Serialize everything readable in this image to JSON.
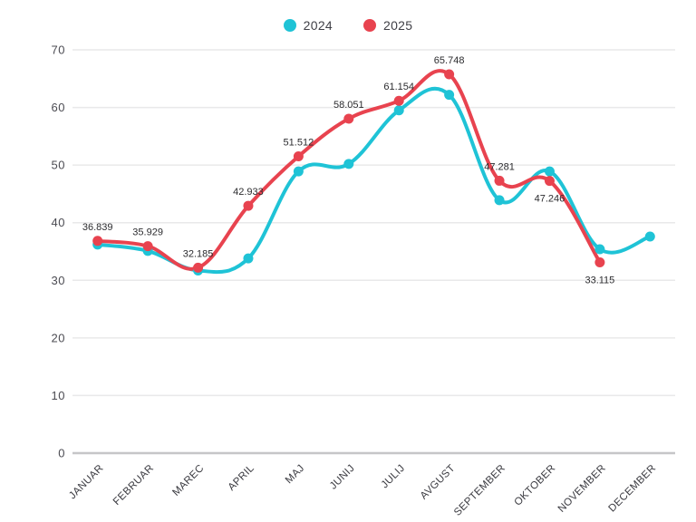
{
  "legend": {
    "items": [
      {
        "label": "2024",
        "color": "#1fc3d6"
      },
      {
        "label": "2025",
        "color": "#e8434f"
      }
    ]
  },
  "chart_data": {
    "type": "line",
    "categories": [
      "JANUAR",
      "FEBRUAR",
      "MAREC",
      "APRIL",
      "MAJ",
      "JUNIJ",
      "JULIJ",
      "AVGUST",
      "SEPTEMBER",
      "OKTOBER",
      "NOVEMBER",
      "DECEMBER"
    ],
    "series": [
      {
        "name": "2024",
        "color": "#1fc3d6",
        "values": [
          36.2,
          35.1,
          31.7,
          33.8,
          48.9,
          50.2,
          59.5,
          62.2,
          43.9,
          48.9,
          35.4,
          37.6
        ],
        "point_labels": []
      },
      {
        "name": "2025",
        "color": "#e8434f",
        "values": [
          36.839,
          35.929,
          32.185,
          42.933,
          51.512,
          58.051,
          61.154,
          65.748,
          47.281,
          47.246,
          33.115
        ],
        "point_labels": [
          {
            "text": "36.839",
            "pos": "above"
          },
          {
            "text": "35.929",
            "pos": "above"
          },
          {
            "text": "32.185",
            "pos": "above"
          },
          {
            "text": "42.933",
            "pos": "above"
          },
          {
            "text": "51.512",
            "pos": "above"
          },
          {
            "text": "58.051",
            "pos": "above"
          },
          {
            "text": "61.154",
            "pos": "above"
          },
          {
            "text": "65.748",
            "pos": "above"
          },
          {
            "text": "47.281",
            "pos": "above"
          },
          {
            "text": "47.246",
            "pos": "below"
          },
          {
            "text": "33.115",
            "pos": "below"
          }
        ]
      }
    ],
    "title": "",
    "xlabel": "",
    "ylabel": "",
    "ylim": [
      0,
      70
    ],
    "yticks": [
      0,
      10,
      20,
      30,
      40,
      50,
      60,
      70
    ],
    "grid": true,
    "legend_position": "top",
    "axis_colors": {
      "gridline": "#e9e9ea",
      "baseline": "#c6c6c8"
    }
  }
}
